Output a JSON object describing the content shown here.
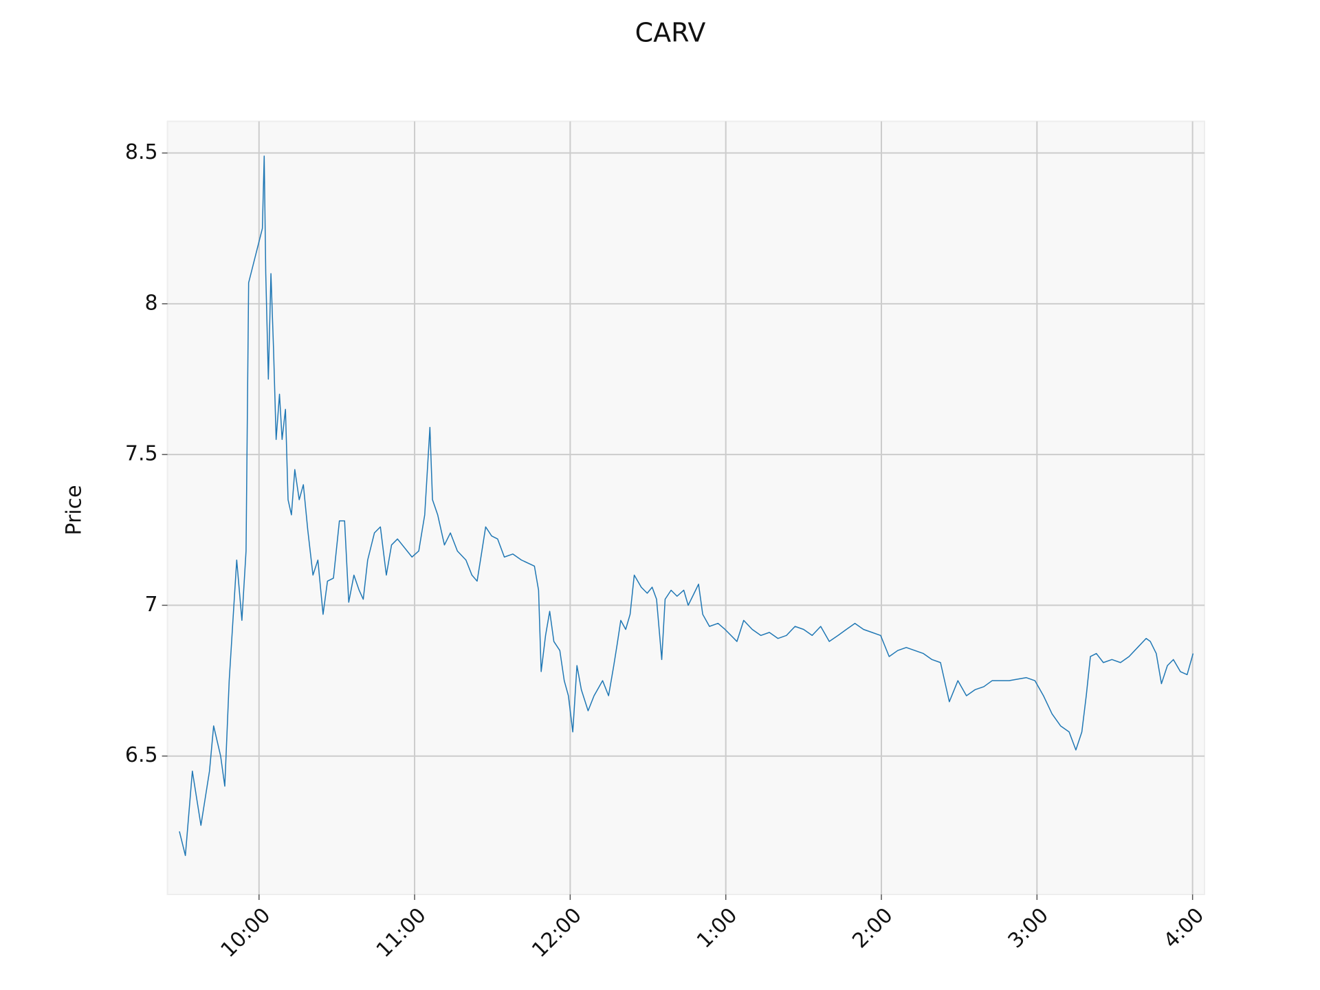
{
  "chart_data": {
    "type": "line",
    "title": "CARV",
    "y_label": "Price",
    "xlim": [
      564.7,
      964.6
    ],
    "ylim": [
      6.041,
      8.605
    ],
    "xticks": [
      {
        "value": 600,
        "label": "10:00"
      },
      {
        "value": 660,
        "label": "11:00"
      },
      {
        "value": 720,
        "label": "12:00"
      },
      {
        "value": 780,
        "label": "1:00"
      },
      {
        "value": 840,
        "label": "2:00"
      },
      {
        "value": 900,
        "label": "3:00"
      },
      {
        "value": 960,
        "label": "4:00"
      }
    ],
    "yticks": [
      6.5,
      7.0,
      7.5,
      8.0,
      8.5
    ],
    "grid": true,
    "series": [
      {
        "color": "#1f77b4",
        "x": [
          569.3,
          571.6,
          574.3,
          577.6,
          580.9,
          582.5,
          585.2,
          586.8,
          588.5,
          589.8,
          591.4,
          593.4,
          595,
          596,
          601.3,
          602,
          602.6,
          603.6,
          604.6,
          605.6,
          606.6,
          607.9,
          608.9,
          610.2,
          611.2,
          612.5,
          613.8,
          615.5,
          617.1,
          618.8,
          620.8,
          622.7,
          624.7,
          626.4,
          628.7,
          631,
          633,
          634.6,
          636.6,
          638.6,
          640.2,
          641.9,
          644.5,
          646.8,
          649.1,
          651.1,
          653.4,
          659,
          661.6,
          663.9,
          665.9,
          666.9,
          668.9,
          671.5,
          673.8,
          676.5,
          679.8,
          682.1,
          684.1,
          685.4,
          687.4,
          689.7,
          692,
          694.6,
          697.9,
          701.2,
          706.2,
          707.8,
          708.8,
          710.5,
          712.1,
          713.7,
          716,
          717.7,
          719.3,
          721,
          722.6,
          724.3,
          726.9,
          729.2,
          732.5,
          734.8,
          736.8,
          738.1,
          739.5,
          741.4,
          743.1,
          744.7,
          747.4,
          749.7,
          751.6,
          753.3,
          755.3,
          756.6,
          758.9,
          761.2,
          763.8,
          765.5,
          767.8,
          769.5,
          771.1,
          773.7,
          777,
          779.7,
          782,
          784.3,
          786.9,
          790.2,
          793.5,
          796.8,
          800.1,
          803.4,
          806.7,
          810,
          813.3,
          816.6,
          819.9,
          823.3,
          826.5,
          829.8,
          833.1,
          836.4,
          839.7,
          843,
          846.3,
          849.6,
          852.9,
          856.2,
          859.5,
          862.8,
          866.2,
          869.5,
          872.8,
          876.1,
          879.5,
          882.7,
          889.3,
          895.9,
          899.2,
          902.5,
          905.8,
          909.1,
          912.4,
          915,
          917.3,
          919,
          920.6,
          922.9,
          925.6,
          928.9,
          932.2,
          935.5,
          938.8,
          942.1,
          943.7,
          946,
          948,
          950.3,
          952.6,
          955.3,
          957.9,
          960.2
        ],
        "values": [
          6.25,
          6.17,
          6.45,
          6.27,
          6.45,
          6.6,
          6.5,
          6.4,
          6.75,
          6.93,
          7.15,
          6.95,
          7.18,
          8.07,
          8.25,
          8.49,
          8.1,
          7.75,
          8.1,
          7.85,
          7.55,
          7.7,
          7.55,
          7.65,
          7.35,
          7.3,
          7.45,
          7.35,
          7.4,
          7.25,
          7.1,
          7.15,
          6.97,
          7.08,
          7.09,
          7.28,
          7.28,
          7.01,
          7.1,
          7.05,
          7.02,
          7.15,
          7.24,
          7.26,
          7.1,
          7.2,
          7.22,
          7.16,
          7.18,
          7.3,
          7.59,
          7.35,
          7.3,
          7.2,
          7.24,
          7.18,
          7.15,
          7.1,
          7.08,
          7.15,
          7.26,
          7.23,
          7.22,
          7.16,
          7.17,
          7.15,
          7.13,
          7.05,
          6.78,
          6.9,
          6.98,
          6.88,
          6.85,
          6.75,
          6.7,
          6.58,
          6.8,
          6.72,
          6.65,
          6.7,
          6.75,
          6.7,
          6.8,
          6.87,
          6.95,
          6.92,
          6.97,
          7.1,
          7.06,
          7.04,
          7.06,
          7.02,
          6.82,
          7.02,
          7.05,
          7.03,
          7.05,
          7.0,
          7.04,
          7.07,
          6.97,
          6.93,
          6.94,
          6.92,
          6.9,
          6.88,
          6.95,
          6.92,
          6.9,
          6.91,
          6.89,
          6.9,
          6.93,
          6.92,
          6.9,
          6.93,
          6.88,
          6.9,
          6.92,
          6.94,
          6.92,
          6.91,
          6.9,
          6.83,
          6.85,
          6.86,
          6.85,
          6.84,
          6.82,
          6.81,
          6.68,
          6.75,
          6.7,
          6.72,
          6.73,
          6.75,
          6.75,
          6.76,
          6.75,
          6.7,
          6.64,
          6.6,
          6.58,
          6.52,
          6.58,
          6.7,
          6.83,
          6.84,
          6.81,
          6.82,
          6.81,
          6.83,
          6.86,
          6.89,
          6.88,
          6.84,
          6.74,
          6.8,
          6.82,
          6.78,
          6.77,
          6.84
        ]
      }
    ]
  }
}
